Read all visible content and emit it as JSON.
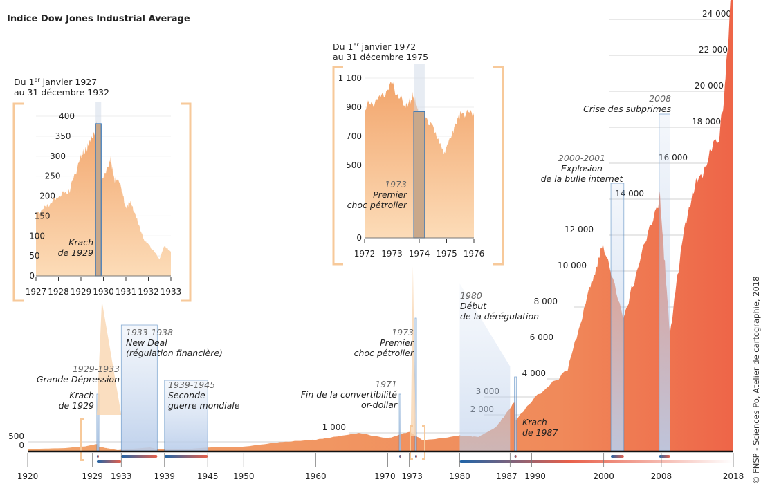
{
  "title": "Indice Dow Jones Industrial Average",
  "credit": "© FNSP - Sciences Po, Atelier de cartographie, 2018",
  "colors": {
    "area_start": "#f2a56c",
    "area_end": "#ee6548",
    "band": "#3a78b8",
    "axis": "#111111",
    "bracket": "#f7c99a"
  },
  "annotations": {
    "krach1929": {
      "title": "Krach",
      "sub": "de 1929"
    },
    "depression": {
      "years": "1929-1933",
      "label": "Grande Dépression"
    },
    "newdeal": {
      "years": "1933-1938",
      "label": "New Deal",
      "sub": "(régulation financière)"
    },
    "ww2": {
      "years": "1939-1945",
      "label": "Seconde",
      "sub": "guerre mondiale"
    },
    "convert": {
      "years": "1971",
      "label": "Fin de la convertibilité",
      "sub": "or-dollar"
    },
    "oil": {
      "years": "1973",
      "label": "Premier",
      "sub": "choc pétrolier"
    },
    "dereg": {
      "years": "1980",
      "label": "Début",
      "sub": "de la dérégulation"
    },
    "krach1987": {
      "title": "Krach",
      "sub": "de 1987"
    },
    "bubble": {
      "years": "2000-2001",
      "label": "Explosion",
      "sub": "de la bulle internet"
    },
    "subprime": {
      "years": "2008",
      "label": "Crise des subprimes"
    }
  },
  "chart_data": [
    {
      "type": "area",
      "title": "Indice Dow Jones Industrial Average",
      "xlim": [
        1920,
        2018
      ],
      "ylim": [
        0,
        26000
      ],
      "x_ticks": [
        1920,
        1929,
        1933,
        1939,
        1945,
        1950,
        1960,
        1970,
        1973,
        1980,
        1987,
        1990,
        2000,
        2008,
        2018
      ],
      "y_ticks": [
        0,
        500,
        1000,
        2000,
        3000,
        4000,
        6000,
        8000,
        10000,
        12000,
        14000,
        16000,
        18000,
        20000,
        22000,
        24000
      ],
      "y_tick_labels": [
        "0",
        "500",
        "1 000",
        "2 000",
        "3 000",
        "4 000",
        "6 000",
        "8 000",
        "10 000",
        "12 000",
        "14 000",
        "16 000",
        "18 000",
        "20 000",
        "22 000",
        "24 000"
      ],
      "x": [
        1920,
        1925,
        1928,
        1929.7,
        1929.9,
        1931,
        1932.5,
        1937,
        1938,
        1942,
        1946,
        1950,
        1955,
        1960,
        1966,
        1970,
        1973,
        1974.9,
        1980,
        1982.6,
        1985,
        1987.6,
        1987.8,
        1990,
        1995,
        1998,
        1999.9,
        2002.7,
        2005,
        2007.8,
        2009.2,
        2011,
        2013,
        2016,
        2017,
        2018
      ],
      "values": [
        100,
        150,
        250,
        381,
        230,
        150,
        41,
        190,
        100,
        95,
        210,
        230,
        480,
        620,
        990,
        700,
        1050,
        580,
        850,
        780,
        1300,
        2700,
        1740,
        2800,
        4500,
        9000,
        11500,
        7300,
        10500,
        14100,
        6500,
        12000,
        15000,
        17500,
        21000,
        26600
      ],
      "periods": [
        {
          "label": "Krach de 1929",
          "start": 1929.6,
          "end": 1929.9
        },
        {
          "label": "1929-1933",
          "start": 1929.6,
          "end": 1933
        },
        {
          "label": "1933-1938",
          "start": 1933,
          "end": 1938
        },
        {
          "label": "1939-1945",
          "start": 1939,
          "end": 1945
        },
        {
          "label": "1971",
          "start": 1971.6,
          "end": 1971.7
        },
        {
          "label": "1973",
          "start": 1973.8,
          "end": 1974
        },
        {
          "label": "1980",
          "start": 1980,
          "end": 2018
        },
        {
          "label": "Krach de 1987",
          "start": 1987.6,
          "end": 1987.9
        },
        {
          "label": "2000-2001",
          "start": 2001,
          "end": 2002.8
        },
        {
          "label": "2008",
          "start": 2007.7,
          "end": 2009.2
        }
      ]
    },
    {
      "type": "area",
      "title": "Du 1er janvier 1927 au 31 décembre 1932",
      "title_parts": [
        "Du 1",
        "er",
        " janvier 1927",
        "au 31 décembre 1932"
      ],
      "xlim": [
        1927,
        1933
      ],
      "ylim": [
        0,
        400
      ],
      "x_ticks": [
        1927,
        1928,
        1929,
        1930,
        1931,
        1932,
        1933
      ],
      "y_ticks": [
        0,
        50,
        100,
        150,
        200,
        250,
        300,
        350,
        400
      ],
      "x": [
        1927,
        1927.5,
        1928,
        1928.5,
        1929,
        1929.3,
        1929.7,
        1929.85,
        1930.3,
        1930.5,
        1930.7,
        1931,
        1931.2,
        1931.5,
        1931.8,
        1932,
        1932.5,
        1932.7,
        1933
      ],
      "values": [
        155,
        175,
        200,
        215,
        300,
        320,
        381,
        230,
        294,
        240,
        240,
        170,
        185,
        140,
        90,
        80,
        42,
        75,
        60
      ],
      "period": {
        "label": "Krach de 1929",
        "start": 1929.65,
        "end": 1929.9
      }
    },
    {
      "type": "area",
      "title": "Du 1er janvier 1972 au 31 décembre 1975",
      "title_parts": [
        "Du 1",
        "er",
        " janvier 1972",
        "au 31 décembre 1975"
      ],
      "xlim": [
        1972,
        1976
      ],
      "ylim": [
        0,
        1100
      ],
      "x_ticks": [
        1972,
        1973,
        1974,
        1975,
        1976
      ],
      "y_ticks": [
        0,
        500,
        700,
        900,
        1100
      ],
      "y_tick_labels": [
        "0",
        "500",
        "700",
        "900",
        "1 100"
      ],
      "x": [
        1972,
        1972.5,
        1973,
        1973.5,
        1973.8,
        1974,
        1974.5,
        1974.9,
        1975.2,
        1975.5,
        1976
      ],
      "values": [
        900,
        950,
        1050,
        900,
        980,
        850,
        780,
        580,
        720,
        860,
        860
      ],
      "period": {
        "label": "Premier choc pétrolier",
        "start": 1973.8,
        "end": 1974.2
      }
    }
  ]
}
